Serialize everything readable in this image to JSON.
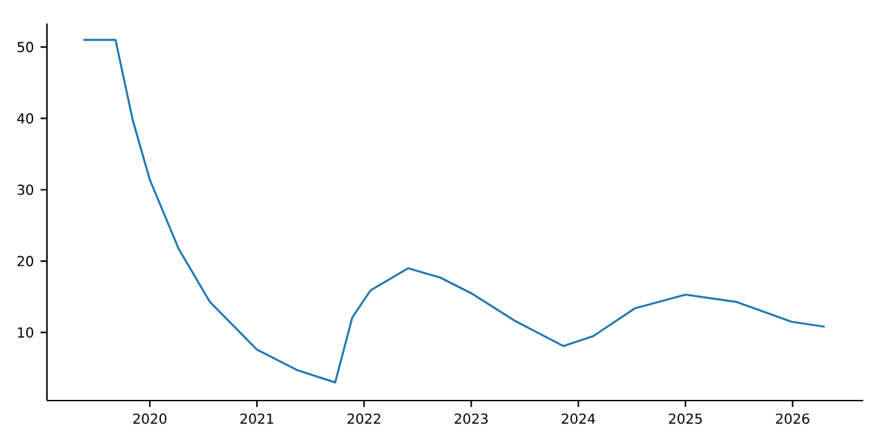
{
  "chart_data": {
    "type": "line",
    "x": [
      2019.38,
      2019.68,
      2019.84,
      2020.0,
      2020.27,
      2020.56,
      2021.0,
      2021.38,
      2021.73,
      2021.89,
      2022.06,
      2022.41,
      2022.71,
      2023.0,
      2023.4,
      2023.86,
      2024.14,
      2024.53,
      2025.0,
      2025.47,
      2025.99,
      2026.3
    ],
    "values": [
      51,
      51,
      39.8,
      31.4,
      21.7,
      14.3,
      7.6,
      4.7,
      3.0,
      12.1,
      15.9,
      19.0,
      17.7,
      15.5,
      11.7,
      8.1,
      9.5,
      13.4,
      15.3,
      14.3,
      11.5,
      10.8
    ],
    "color": "#1f77b4",
    "xlim": [
      2019.04,
      2026.66
    ],
    "ylim": [
      0.46,
      53.3
    ],
    "xticks": [
      2020,
      2021,
      2022,
      2023,
      2024,
      2025,
      2026
    ],
    "yticks": [
      10,
      20,
      30,
      40,
      50
    ]
  }
}
